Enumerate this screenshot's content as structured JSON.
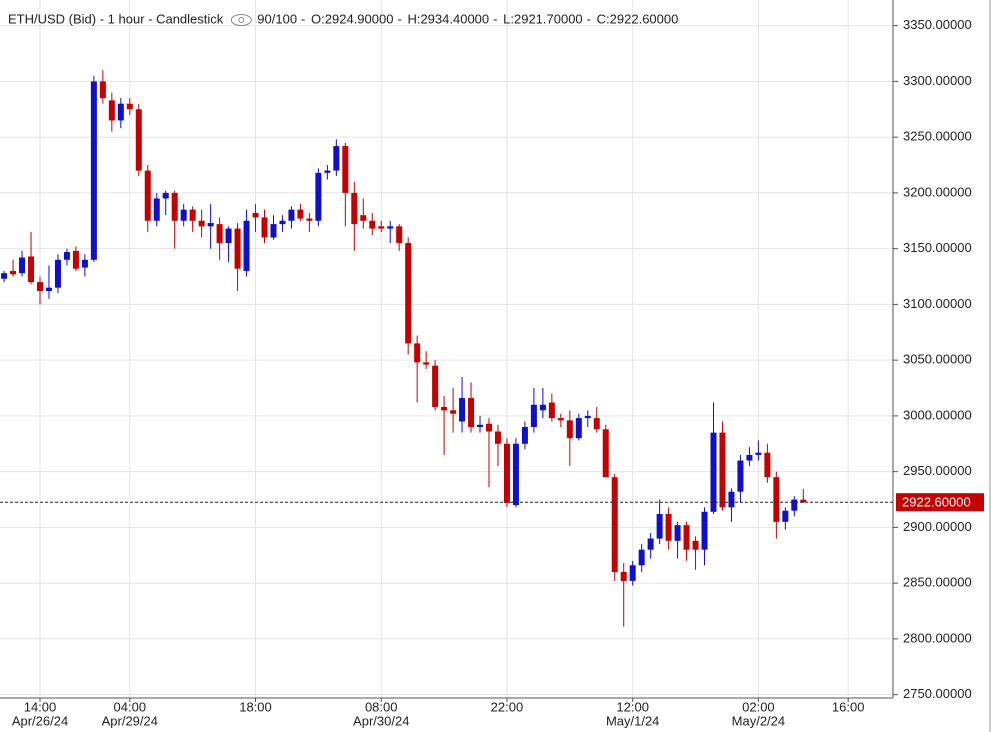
{
  "chart_data": {
    "type": "candlestick",
    "title": "ETH/USD (Bid) - 1 hour - Candlestick",
    "bar_count": "90/100",
    "readout": [
      "O:2924.90000",
      "H:2934.40000",
      "L:2921.70000",
      "C:2922.60000"
    ],
    "categories": [
      null,
      null,
      null,
      null,
      "14:00",
      null,
      null,
      null,
      null,
      null,
      null,
      null,
      null,
      null,
      "04:00",
      null,
      null,
      null,
      null,
      null,
      null,
      null,
      null,
      null,
      null,
      null,
      null,
      null,
      "18:00",
      null,
      null,
      null,
      null,
      null,
      null,
      null,
      null,
      null,
      null,
      null,
      null,
      null,
      "08:00",
      null,
      null,
      null,
      null,
      null,
      null,
      null,
      null,
      null,
      null,
      null,
      null,
      null,
      "22:00",
      null,
      null,
      null,
      null,
      null,
      null,
      null,
      null,
      null,
      null,
      null,
      null,
      null,
      "12:00",
      null,
      null,
      null,
      null,
      null,
      null,
      null,
      null,
      null,
      null,
      null,
      null,
      null,
      "02:00",
      null,
      null,
      null,
      null,
      null,
      null,
      null,
      null,
      null,
      "16:00",
      null
    ],
    "category_dates": [
      null,
      null,
      null,
      null,
      "Apr/26/24",
      null,
      null,
      null,
      null,
      null,
      null,
      null,
      null,
      null,
      "Apr/29/24",
      null,
      null,
      null,
      null,
      null,
      null,
      null,
      null,
      null,
      null,
      null,
      null,
      null,
      null,
      null,
      null,
      null,
      null,
      null,
      null,
      null,
      null,
      null,
      null,
      null,
      null,
      null,
      "Apr/30/24",
      null,
      null,
      null,
      null,
      null,
      null,
      null,
      null,
      null,
      null,
      null,
      null,
      null,
      null,
      null,
      null,
      null,
      null,
      null,
      null,
      null,
      null,
      null,
      null,
      null,
      null,
      null,
      "May/1/24",
      null,
      null,
      null,
      null,
      null,
      null,
      null,
      null,
      null,
      null,
      null,
      null,
      null,
      "May/2/24",
      null,
      null,
      null,
      null,
      null,
      null,
      null,
      null,
      null,
      null,
      null
    ],
    "open": [
      3123,
      3130,
      3128,
      3143,
      3120,
      3112,
      3115,
      3140,
      3148,
      3133,
      3140,
      3300,
      3283,
      3265,
      3280,
      3275,
      3220,
      3175,
      3195,
      3200,
      3175,
      3185,
      3175,
      3170,
      3172,
      3155,
      3168,
      3130,
      3182,
      3178,
      3160,
      3172,
      3175,
      3185,
      3177,
      3175,
      3218,
      3220,
      3242,
      3200,
      3180,
      3175,
      3170,
      3168,
      3170,
      3155,
      3065,
      3048,
      3045,
      3008,
      3005,
      2995,
      3016,
      2990,
      2993,
      2986,
      2975,
      2920,
      2975,
      2990,
      3005,
      3012,
      2998,
      2996,
      2980,
      2998,
      2998,
      2988,
      2945,
      2860,
      2852,
      2866,
      2880,
      2890,
      2912,
      2888,
      2902,
      2888,
      2880,
      2914,
      2985,
      2918,
      2932,
      2960,
      2965,
      2967,
      2945,
      2905,
      2915,
      2924.9,
      null,
      null,
      null,
      null,
      null,
      null
    ],
    "high": [
      3130,
      3140,
      3148,
      3165,
      3125,
      3135,
      3145,
      3150,
      3152,
      3145,
      3305,
      3310,
      3290,
      3285,
      3285,
      3280,
      3225,
      3200,
      3202,
      3202,
      3190,
      3188,
      3185,
      3190,
      3178,
      3170,
      3173,
      3185,
      3190,
      3185,
      3180,
      3180,
      3188,
      3190,
      3182,
      3222,
      3225,
      3248,
      3245,
      3210,
      3195,
      3182,
      3175,
      3175,
      3172,
      3160,
      3072,
      3058,
      3050,
      3018,
      3025,
      3035,
      3030,
      3000,
      2998,
      2992,
      2980,
      2980,
      2995,
      3025,
      3025,
      3020,
      3002,
      3005,
      3002,
      3005,
      3008,
      2992,
      2948,
      2868,
      2870,
      2885,
      2895,
      2925,
      2918,
      2905,
      2905,
      2892,
      2918,
      3012,
      2995,
      2935,
      2965,
      2972,
      2978,
      2975,
      2950,
      2918,
      2928,
      2934.4,
      null,
      null,
      null,
      null,
      null,
      null
    ],
    "low": [
      3120,
      3125,
      3125,
      3118,
      3100,
      3105,
      3110,
      3135,
      3130,
      3125,
      3138,
      3280,
      3255,
      3258,
      3270,
      3215,
      3165,
      3170,
      3180,
      3150,
      3170,
      3165,
      3160,
      3150,
      3140,
      3138,
      3112,
      3125,
      3165,
      3155,
      3158,
      3165,
      3168,
      3175,
      3165,
      3170,
      3212,
      3215,
      3170,
      3148,
      3168,
      3162,
      3165,
      3155,
      3148,
      3055,
      3012,
      3042,
      3005,
      2965,
      2985,
      2985,
      2985,
      2985,
      2936,
      2955,
      2918,
      2918,
      2970,
      2985,
      2998,
      2995,
      2990,
      2955,
      2978,
      2990,
      2985,
      2945,
      2852,
      2811,
      2848,
      2860,
      2872,
      2885,
      2880,
      2872,
      2870,
      2862,
      2866,
      2912,
      2915,
      2905,
      2922,
      2955,
      2960,
      2940,
      2890,
      2898,
      2910,
      2921.7,
      null,
      null,
      null,
      null,
      null,
      null
    ],
    "close": [
      3128,
      3127,
      3142,
      3120,
      3112,
      3115,
      3140,
      3147,
      3132,
      3140,
      3300,
      3285,
      3265,
      3280,
      3275,
      3220,
      3175,
      3195,
      3200,
      3175,
      3185,
      3175,
      3170,
      3173,
      3155,
      3168,
      3132,
      3175,
      3178,
      3160,
      3172,
      3175,
      3185,
      3177,
      3175,
      3218,
      3220,
      3242,
      3200,
      3172,
      3175,
      3168,
      3168,
      3170,
      3155,
      3065,
      3048,
      3046,
      3008,
      3005,
      3002,
      3016,
      2990,
      2992,
      2986,
      2975,
      2922,
      2975,
      2990,
      3010,
      3010,
      2998,
      2996,
      2980,
      2998,
      3000,
      2988,
      2945,
      2860,
      2852,
      2866,
      2880,
      2890,
      2912,
      2888,
      2902,
      2880,
      2880,
      2914,
      2985,
      2918,
      2932,
      2960,
      2965,
      2967,
      2945,
      2905,
      2915,
      2925,
      2922.6,
      null,
      null,
      null,
      null,
      null,
      null
    ],
    "up_color": "#1010c8",
    "down_color": "#c40000",
    "last_price": {
      "value": 2922.6,
      "label": "2922.60000"
    },
    "ylim": [
      2747,
      3373
    ],
    "yticks": [
      {
        "value": 2750,
        "label": "2750.00000"
      },
      {
        "value": 2800,
        "label": "2800.00000"
      },
      {
        "value": 2850,
        "label": "2850.00000"
      },
      {
        "value": 2900,
        "label": "2900.00000"
      },
      {
        "value": 2950,
        "label": "2950.00000"
      },
      {
        "value": 3000,
        "label": "3000.00000"
      },
      {
        "value": 3050,
        "label": "3050.00000"
      },
      {
        "value": 3100,
        "label": "3100.00000"
      },
      {
        "value": 3150,
        "label": "3150.00000"
      },
      {
        "value": 3200,
        "label": "3200.00000"
      },
      {
        "value": 3250,
        "label": "3250.00000"
      },
      {
        "value": 3300,
        "label": "3300.00000"
      },
      {
        "value": 3350,
        "label": "3350.00000"
      }
    ],
    "grid": true
  }
}
